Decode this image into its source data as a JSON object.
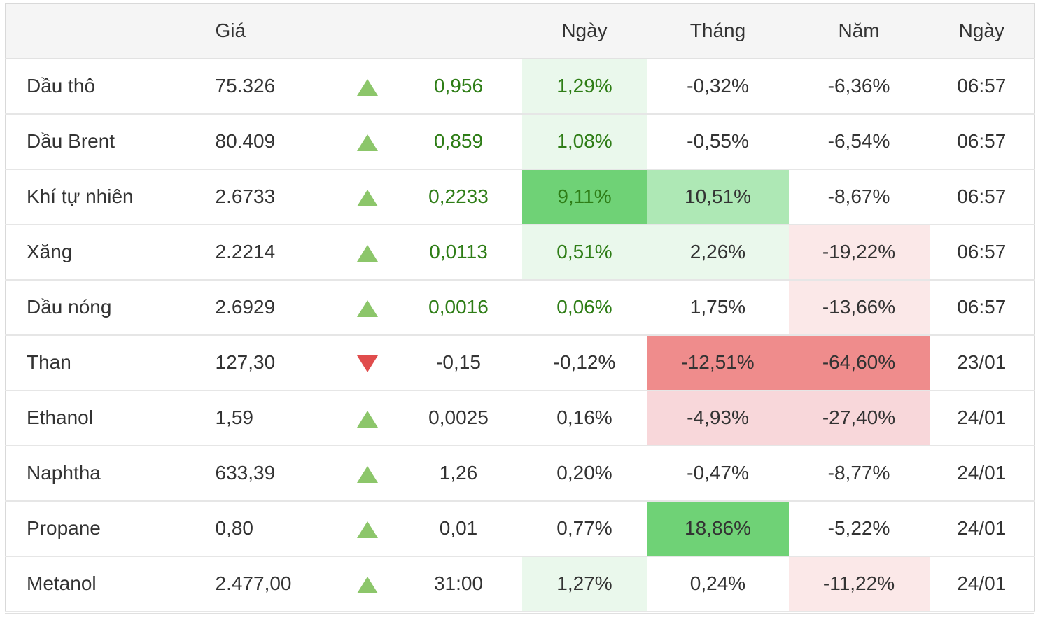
{
  "header": {
    "col_name": "",
    "col_price": "Giá",
    "col_dir": "",
    "col_change": "",
    "col_day": "Ngày",
    "col_month": "Tháng",
    "col_year": "Năm",
    "col_date": "Ngày"
  },
  "colors": {
    "up_text": "#2e7d16",
    "up_arrow": "#8cc66a",
    "down_arrow": "#e04c4c",
    "green_light": "#eaf8ec",
    "green_mid": "#aee8b5",
    "green_strong": "#6fd276",
    "red_light": "#fbe8e8",
    "red_mid": "#f8d7da",
    "red_strong": "#ef8c8c"
  },
  "rows": [
    {
      "name": "Dầu thô",
      "price": "75.326",
      "dir": "up",
      "change": "0,956",
      "change_up": true,
      "day": "1,29%",
      "month": "-0,32%",
      "year": "-6,36%",
      "date": "06:57",
      "day_bg": "green_light",
      "month_bg": "",
      "year_bg": ""
    },
    {
      "name": "Dầu Brent",
      "price": "80.409",
      "dir": "up",
      "change": "0,859",
      "change_up": true,
      "day": "1,08%",
      "month": "-0,55%",
      "year": "-6,54%",
      "date": "06:57",
      "day_bg": "green_light",
      "month_bg": "",
      "year_bg": ""
    },
    {
      "name": "Khí tự nhiên",
      "price": "2.6733",
      "dir": "up",
      "change": "0,2233",
      "change_up": true,
      "day": "9,11%",
      "month": "10,51%",
      "year": "-8,67%",
      "date": "06:57",
      "day_bg": "green_strong",
      "month_bg": "green_mid",
      "year_bg": ""
    },
    {
      "name": "Xăng",
      "price": "2.2214",
      "dir": "up",
      "change": "0,0113",
      "change_up": true,
      "day": "0,51%",
      "month": "2,26%",
      "year": "-19,22%",
      "date": "06:57",
      "day_bg": "green_light",
      "month_bg": "green_light",
      "year_bg": "red_light"
    },
    {
      "name": "Dầu nóng",
      "price": "2.6929",
      "dir": "up",
      "change": "0,0016",
      "change_up": true,
      "day": "0,06%",
      "month": "1,75%",
      "year": "-13,66%",
      "date": "06:57",
      "day_bg": "",
      "month_bg": "",
      "year_bg": "red_light"
    },
    {
      "name": "Than",
      "price": "127,30",
      "dir": "down",
      "change": "-0,15",
      "change_up": false,
      "day": "-0,12%",
      "month": "-12,51%",
      "year": "-64,60%",
      "date": "23/01",
      "day_bg": "",
      "month_bg": "red_strong",
      "year_bg": "red_strong"
    },
    {
      "name": "Ethanol",
      "price": "1,59",
      "dir": "up",
      "change": "0,0025",
      "change_up": false,
      "day": "0,16%",
      "month": "-4,93%",
      "year": "-27,40%",
      "date": "24/01",
      "day_bg": "",
      "month_bg": "red_mid",
      "year_bg": "red_mid"
    },
    {
      "name": "Naphtha",
      "price": "633,39",
      "dir": "up",
      "change": "1,26",
      "change_up": false,
      "day": "0,20%",
      "month": "-0,47%",
      "year": "-8,77%",
      "date": "24/01",
      "day_bg": "",
      "month_bg": "",
      "year_bg": ""
    },
    {
      "name": "Propane",
      "price": "0,80",
      "dir": "up",
      "change": "0,01",
      "change_up": false,
      "day": "0,77%",
      "month": "18,86%",
      "year": "-5,22%",
      "date": "24/01",
      "day_bg": "",
      "month_bg": "green_strong",
      "year_bg": ""
    },
    {
      "name": "Metanol",
      "price": "2.477,00",
      "dir": "up",
      "change": "31:00",
      "change_up": false,
      "day": "1,27%",
      "month": "0,24%",
      "year": "-11,22%",
      "date": "24/01",
      "day_bg": "green_light",
      "month_bg": "",
      "year_bg": "red_light"
    }
  ]
}
